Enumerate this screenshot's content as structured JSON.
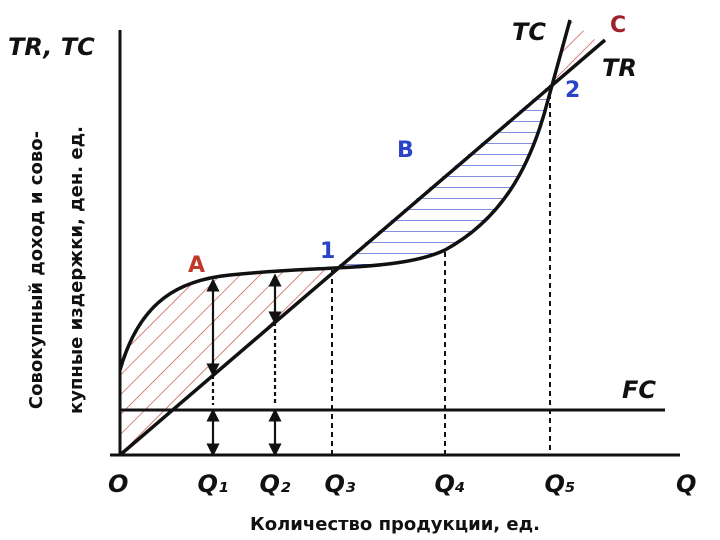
{
  "axis": {
    "y_label": "TR, TC",
    "y_title": [
      "Совокупный доход и сово-",
      "купные издержки, ден. ед."
    ],
    "x_label": "Q",
    "x_title": "Количество продукции, ед.",
    "origin": "O"
  },
  "curves": {
    "tc": "TC",
    "tr": "TR",
    "fc": "FC"
  },
  "quantities": [
    "Q₁",
    "Q₂",
    "Q₃",
    "Q₄",
    "Q₅"
  ],
  "regions": {
    "a": "A",
    "b": "B",
    "c": "C"
  },
  "points": [
    "1",
    "2"
  ]
}
